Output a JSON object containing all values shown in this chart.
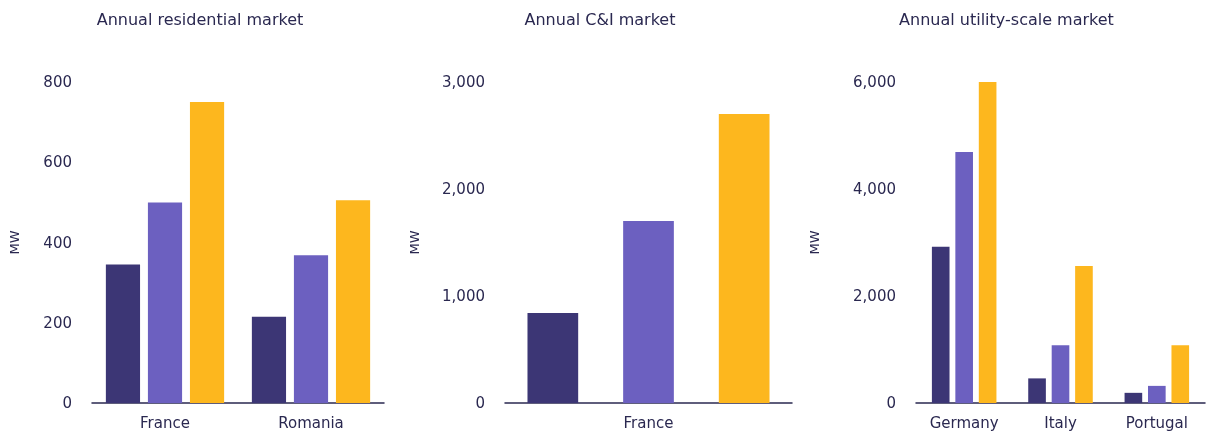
{
  "chart_data": [
    {
      "type": "bar",
      "title": "Annual residential market",
      "ylabel": "MW",
      "categories": [
        "France",
        "Romania"
      ],
      "series": [
        {
          "color": "#3c3675",
          "values": [
            345,
            215
          ]
        },
        {
          "color": "#6c60c0",
          "values": [
            500,
            368
          ]
        },
        {
          "color": "#fdb71e",
          "values": [
            750,
            505
          ]
        }
      ],
      "ylim": [
        0,
        800
      ],
      "yticks": [
        0,
        200,
        400,
        600,
        800
      ],
      "grid": false
    },
    {
      "type": "bar",
      "title": "Annual C&I market",
      "ylabel": "MW",
      "categories": [
        null,
        "France",
        null
      ],
      "values": [
        840,
        1700,
        2700
      ],
      "colors": [
        "#3c3675",
        "#6c60c0",
        "#fdb71e"
      ],
      "ylim": [
        0,
        3000
      ],
      "yticks": [
        0,
        {
          "value": 1000,
          "label": "1,000"
        },
        {
          "value": 2000,
          "label": "2,000"
        },
        {
          "value": 3000,
          "label": "3,000"
        }
      ],
      "grid": false
    },
    {
      "type": "bar",
      "title": "Annual utility-scale market",
      "ylabel": "MW",
      "categories": [
        "Germany",
        "Italy",
        "Portugal"
      ],
      "series": [
        {
          "color": "#3c3675",
          "values": [
            2920,
            460,
            190
          ]
        },
        {
          "color": "#6c60c0",
          "values": [
            4690,
            1080,
            320
          ]
        },
        {
          "color": "#fdb71e",
          "values": [
            6000,
            2560,
            1080
          ]
        }
      ],
      "ylim": [
        0,
        6000
      ],
      "yticks": [
        0,
        {
          "value": 2000,
          "label": "2,000"
        },
        {
          "value": 4000,
          "label": "4,000"
        },
        {
          "value": 6000,
          "label": "6,000"
        }
      ],
      "grid": false
    }
  ]
}
